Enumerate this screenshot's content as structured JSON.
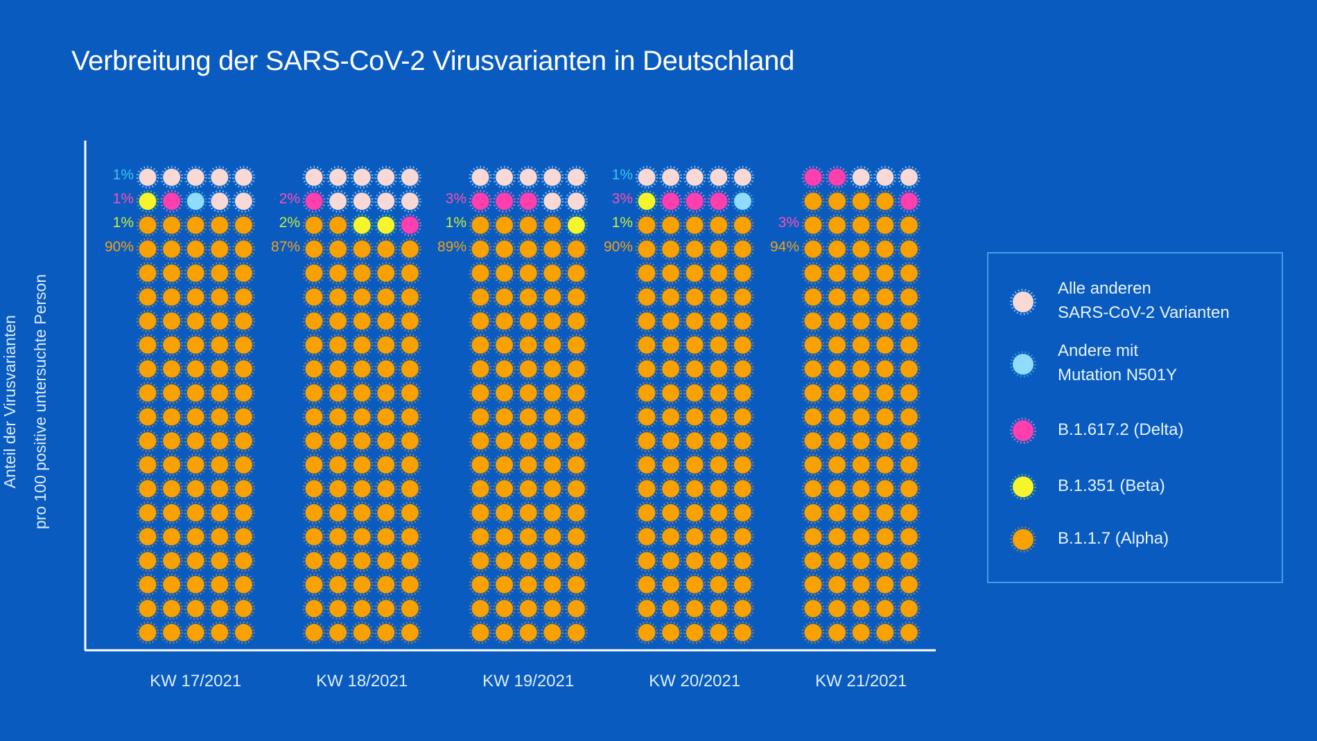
{
  "chart_data": {
    "type": "waffle",
    "title": "Verbreitung der SARS-CoV-2 Virusvarianten in Deutschland",
    "ylabel": [
      "Anteil der Virusvarianten",
      "pro 100 positive untersuchte Person"
    ],
    "xlabel": "",
    "grid": false,
    "legend_position": "right",
    "units_per_group": 100,
    "columns_per_group": 5,
    "rows_per_group": 20,
    "series": [
      {
        "key": "others",
        "name_lines": [
          "Alle anderen",
          "SARS-CoV-2 Varianten"
        ],
        "color": "#f9d9d6",
        "ray": "#9fe0ff"
      },
      {
        "key": "n501y",
        "name_lines": [
          "Andere mit",
          "Mutation N501Y"
        ],
        "color": "#8fdcff",
        "ray": "#3ab0f0"
      },
      {
        "key": "delta",
        "name_lines": [
          "B.1.617.2 (Delta)"
        ],
        "color": "#ff3fae",
        "ray": "#ff7fd0"
      },
      {
        "key": "beta",
        "name_lines": [
          "B.1.351 (Beta)"
        ],
        "color": "#f6f52c",
        "ray": "#6fd060"
      },
      {
        "key": "alpha",
        "name_lines": [
          "B.1.1.7 (Alpha)"
        ],
        "color": "#f8a100",
        "ray": "#c09040"
      }
    ],
    "categories": [
      "KW 17/2021",
      "KW 18/2021",
      "KW 19/2021",
      "KW 20/2021",
      "KW 21/2021"
    ],
    "groups": [
      {
        "label": "KW 17/2021",
        "values": {
          "others": 7,
          "n501y": 1,
          "delta": 1,
          "beta": 1,
          "alpha": 90
        },
        "cells_top_rows": [
          "others",
          "others",
          "others",
          "others",
          "others",
          "beta",
          "delta",
          "n501y",
          "others",
          "others"
        ],
        "percent_labels": [
          {
            "text": "1%",
            "series": "n501y",
            "row": 1
          },
          {
            "text": "1%",
            "series": "delta",
            "row": 2
          },
          {
            "text": "1%",
            "series": "beta",
            "row": 3
          },
          {
            "text": "90%",
            "series": "alpha",
            "row": 4
          }
        ]
      },
      {
        "label": "KW 18/2021",
        "values": {
          "others": 9,
          "n501y": 0,
          "delta": 2,
          "beta": 2,
          "alpha": 87
        },
        "cells_top_rows": [
          "others",
          "others",
          "others",
          "others",
          "others",
          "delta",
          "others",
          "others",
          "others",
          "others",
          "alpha",
          "alpha",
          "beta",
          "beta",
          "delta"
        ],
        "percent_labels": [
          {
            "text": "2%",
            "series": "delta",
            "row": 2
          },
          {
            "text": "2%",
            "series": "beta",
            "row": 3
          },
          {
            "text": "87%",
            "series": "alpha",
            "row": 4
          }
        ]
      },
      {
        "label": "KW 19/2021",
        "values": {
          "others": 7,
          "n501y": 0,
          "delta": 3,
          "beta": 1,
          "alpha": 89
        },
        "cells_top_rows": [
          "others",
          "others",
          "others",
          "others",
          "others",
          "delta",
          "delta",
          "delta",
          "others",
          "others",
          "alpha",
          "alpha",
          "alpha",
          "alpha",
          "beta"
        ],
        "percent_labels": [
          {
            "text": "3%",
            "series": "delta",
            "row": 2
          },
          {
            "text": "1%",
            "series": "beta",
            "row": 3
          },
          {
            "text": "89%",
            "series": "alpha",
            "row": 4
          }
        ]
      },
      {
        "label": "KW 20/2021",
        "values": {
          "others": 5,
          "n501y": 1,
          "delta": 3,
          "beta": 1,
          "alpha": 90
        },
        "cells_top_rows": [
          "others",
          "others",
          "others",
          "others",
          "others",
          "beta",
          "delta",
          "delta",
          "delta",
          "n501y"
        ],
        "percent_labels": [
          {
            "text": "1%",
            "series": "n501y",
            "row": 1
          },
          {
            "text": "3%",
            "series": "delta",
            "row": 2
          },
          {
            "text": "1%",
            "series": "beta",
            "row": 3
          },
          {
            "text": "90%",
            "series": "alpha",
            "row": 4
          }
        ]
      },
      {
        "label": "KW 21/2021",
        "values": {
          "others": 3,
          "n501y": 0,
          "delta": 3,
          "beta": 0,
          "alpha": 94
        },
        "cells_top_rows": [
          "delta",
          "delta",
          "others",
          "others",
          "others",
          "alpha",
          "alpha",
          "alpha",
          "alpha",
          "delta"
        ],
        "percent_labels": [
          {
            "text": "3%",
            "series": "delta",
            "row": 3
          },
          {
            "text": "94%",
            "series": "alpha",
            "row": 4
          }
        ]
      }
    ],
    "label_colors": {
      "others": "#f9d9d6",
      "n501y": "#3cc4f2",
      "delta": "#ff4fb4",
      "beta": "#c8ee3c",
      "alpha": "#f2a21c"
    },
    "axis_color": "#ffffff",
    "text_color": "#dcefff"
  }
}
